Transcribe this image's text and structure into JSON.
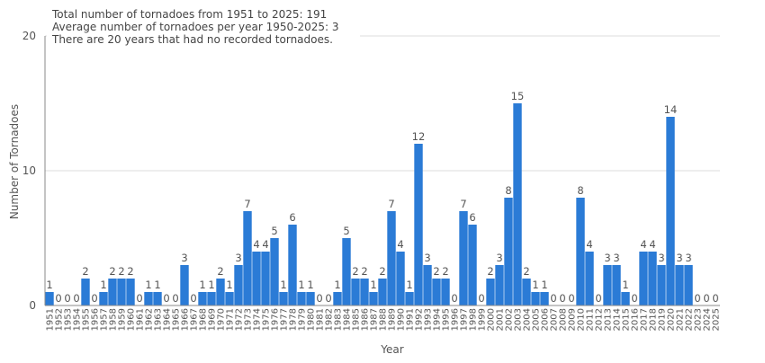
{
  "chart_data": {
    "type": "bar",
    "xlabel": "Year",
    "ylabel": "Number of Tornadoes",
    "ylim": [
      0,
      20
    ],
    "yticks": [
      0,
      10,
      20
    ],
    "grid": true,
    "legend": "none",
    "bar_color": "#2b7bd6",
    "annotations": [
      "Total number of tornadoes from 1951 to 2025: 191",
      "Average number of tornadoes per year 1950-2025: 3",
      "There are 20 years that had no recorded tornadoes."
    ],
    "categories": [
      "1951",
      "1952",
      "1953",
      "1954",
      "1955",
      "1956",
      "1957",
      "1958",
      "1959",
      "1960",
      "1961",
      "1962",
      "1963",
      "1964",
      "1965",
      "1966",
      "1967",
      "1968",
      "1969",
      "1970",
      "1971",
      "1972",
      "1973",
      "1974",
      "1975",
      "1976",
      "1977",
      "1978",
      "1979",
      "1980",
      "1981",
      "1982",
      "1983",
      "1984",
      "1985",
      "1986",
      "1987",
      "1988",
      "1989",
      "1990",
      "1991",
      "1992",
      "1993",
      "1994",
      "1995",
      "1996",
      "1997",
      "1998",
      "1999",
      "2000",
      "2001",
      "2002",
      "2003",
      "2004",
      "2005",
      "2006",
      "2007",
      "2008",
      "2009",
      "2010",
      "2011",
      "2012",
      "2013",
      "2014",
      "2015",
      "2016",
      "2017",
      "2018",
      "2019",
      "2020",
      "2021",
      "2022",
      "2023",
      "2024",
      "2025"
    ],
    "values": [
      1,
      0,
      0,
      0,
      2,
      0,
      1,
      2,
      2,
      2,
      0,
      1,
      1,
      0,
      0,
      3,
      0,
      1,
      1,
      2,
      1,
      3,
      7,
      4,
      4,
      5,
      1,
      6,
      1,
      1,
      0,
      0,
      1,
      5,
      2,
      2,
      1,
      2,
      7,
      4,
      1,
      12,
      3,
      2,
      2,
      0,
      7,
      6,
      0,
      2,
      3,
      8,
      15,
      2,
      1,
      1,
      0,
      0,
      0,
      8,
      4,
      0,
      3,
      3,
      1,
      0,
      4,
      4,
      3,
      14,
      3,
      3,
      0,
      0,
      0
    ]
  }
}
